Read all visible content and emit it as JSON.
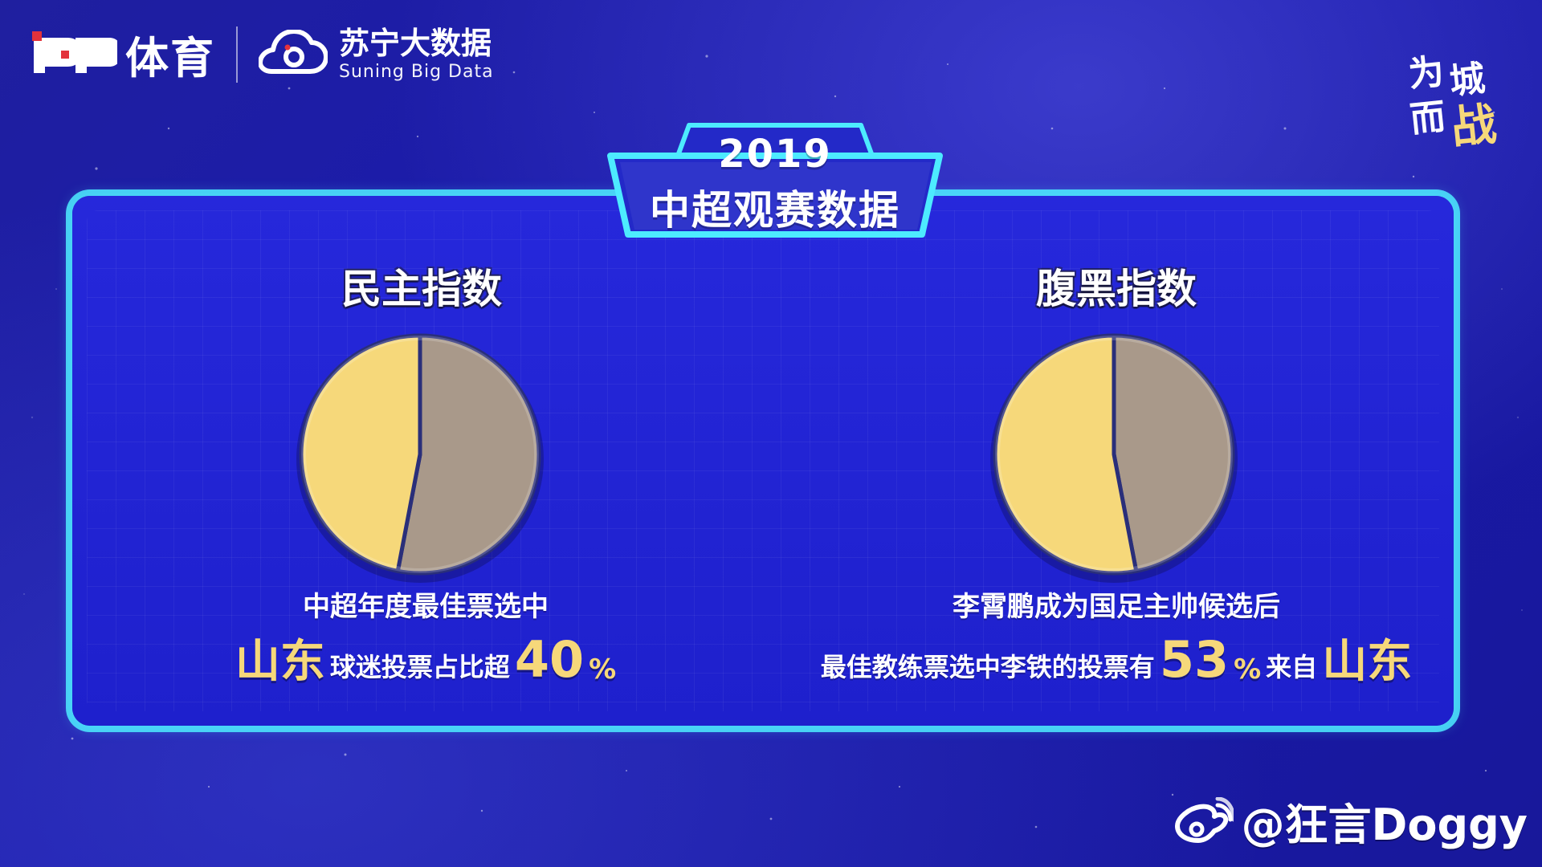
{
  "brand": {
    "pp_label": "体育",
    "suning_cn": "苏宁大数据",
    "suning_en": "Suning Big Data"
  },
  "header": {
    "year": "2019",
    "title": "中超观赛数据"
  },
  "slogan_text": "为城而战",
  "colors": {
    "beige": "#a9998a",
    "yellow": "#f6d87a",
    "accent_cyan": "#4debff"
  },
  "chart_data": [
    {
      "type": "pie",
      "title": "民主指数",
      "slices": [
        {
          "value": 53,
          "color": "#a9998a"
        },
        {
          "value": 47,
          "color": "#f6d87a"
        }
      ]
    },
    {
      "type": "pie",
      "title": "腹黑指数",
      "slices": [
        {
          "value": 47,
          "color": "#a9998a"
        },
        {
          "value": 53,
          "color": "#f6d87a"
        }
      ]
    }
  ],
  "left_text": {
    "line1": "中超年度最佳票选中",
    "line2_hl": "山东",
    "line2_text": "球迷投票占比超",
    "line2_num": "40",
    "line2_pct": "%"
  },
  "right_text": {
    "line1": "李霄鹏成为国足主帅候选后",
    "line2_text": "最佳教练票选中李铁的投票有",
    "line2_num": "53",
    "line2_pct": "%",
    "line2_mid": "来自",
    "line2_hl": "山东"
  },
  "watermark": {
    "handle": "@狂言Doggy"
  }
}
